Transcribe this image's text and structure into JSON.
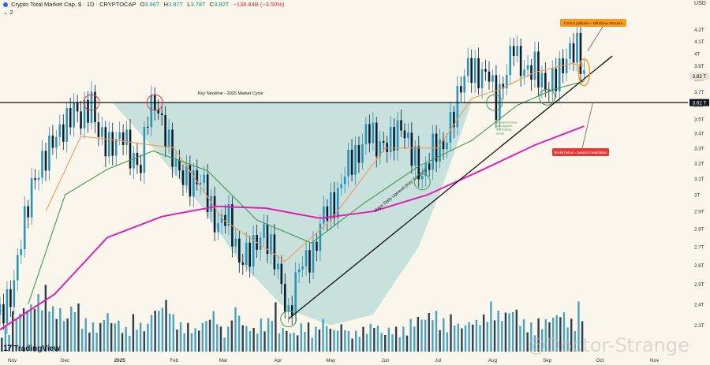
{
  "header": {
    "title": "Crypto Total Market Cap, $ · 1D · CRYPTOCAP",
    "open_label": "O",
    "open": "3.96T",
    "high_label": "H",
    "high": "3.97T",
    "low_label": "L",
    "low": "3.78T",
    "close_label": "C",
    "close": "3.82T",
    "change": "−138.84B (−3.50%)",
    "indicator_count": "2",
    "currency": "USD"
  },
  "branding": {
    "logo_text": "TradingView",
    "logo_mark": "17",
    "watermark": "@Doctor-Strange"
  },
  "colors": {
    "background": "#faf6ec",
    "bull_candle": "#2a93b8",
    "bear_candle": "#0b1d31",
    "ema_short": "#f39a5e",
    "ema_mid": "#3f9a4f",
    "ema_long": "#e020b0",
    "cup_fill": "#9ecfcf",
    "annotation_orange": "#f59a22",
    "annotation_red": "#e53935",
    "annotation_green": "#3f9a4f"
  },
  "chart_data": {
    "type": "candlestick",
    "title": "Crypto Total Market Cap",
    "ylabel": "",
    "xlabel": "",
    "y_scale": "log",
    "ylim": [
      2.18,
      4.32
    ],
    "y_ticks": [
      "4.2T",
      "4.1T",
      "4T",
      "3.9T",
      "3.8T",
      "3.7T",
      "3.6T",
      "3.5T",
      "3.4T",
      "3.3T",
      "3.2T",
      "3.1T",
      "3T",
      "2.9T",
      "2.8T",
      "2.7T",
      "2.6T",
      "2.5T",
      "2.4T",
      "2.3T"
    ],
    "y_tick_values": [
      4.2,
      4.1,
      4.0,
      3.9,
      3.8,
      3.7,
      3.6,
      3.5,
      3.4,
      3.3,
      3.2,
      3.1,
      3.0,
      2.9,
      2.8,
      2.7,
      2.6,
      2.5,
      2.4,
      2.3
    ],
    "x_ticks": [
      "Nov",
      "Dec",
      "2025",
      "Feb",
      "Mar",
      "Apr",
      "May",
      "Jun",
      "Jul",
      "Aug",
      "Sep",
      "Oct",
      "Nov"
    ],
    "x_range": [
      "2024-10-25",
      "2025-11-20"
    ],
    "x_tick_dates": [
      "2024-11-01",
      "2024-12-01",
      "2025-01-01",
      "2025-02-01",
      "2025-03-01",
      "2025-04-01",
      "2025-05-01",
      "2025-06-01",
      "2025-07-01",
      "2025-08-01",
      "2025-09-01",
      "2025-10-01",
      "2025-11-01"
    ],
    "price_labels": [
      {
        "text": "3.82 T",
        "value": 3.82,
        "style": "current"
      },
      {
        "text": "3.62 T",
        "value": 3.62,
        "style": "neckline"
      }
    ],
    "series": [
      {
        "name": "Total market cap",
        "kind": "candles",
        "points": [
          [
            "2024-10-25",
            2.35
          ],
          [
            "2024-11-01",
            2.45
          ],
          [
            "2024-11-06",
            2.75
          ],
          [
            "2024-11-12",
            3.05
          ],
          [
            "2024-11-18",
            3.2
          ],
          [
            "2024-11-24",
            3.35
          ],
          [
            "2024-12-01",
            3.45
          ],
          [
            "2024-12-06",
            3.58
          ],
          [
            "2024-12-10",
            3.5
          ],
          [
            "2024-12-16",
            3.62
          ],
          [
            "2024-12-20",
            3.4
          ],
          [
            "2024-12-27",
            3.3
          ],
          [
            "2025-01-03",
            3.4
          ],
          [
            "2025-01-08",
            3.22
          ],
          [
            "2025-01-13",
            3.18
          ],
          [
            "2025-01-17",
            3.55
          ],
          [
            "2025-01-21",
            3.62
          ],
          [
            "2025-01-27",
            3.4
          ],
          [
            "2025-02-03",
            3.15
          ],
          [
            "2025-02-10",
            3.08
          ],
          [
            "2025-02-17",
            3.1
          ],
          [
            "2025-02-25",
            2.8
          ],
          [
            "2025-03-03",
            2.9
          ],
          [
            "2025-03-10",
            2.62
          ],
          [
            "2025-03-17",
            2.68
          ],
          [
            "2025-03-24",
            2.78
          ],
          [
            "2025-03-31",
            2.62
          ],
          [
            "2025-04-07",
            2.33
          ],
          [
            "2025-04-13",
            2.6
          ],
          [
            "2025-04-21",
            2.65
          ],
          [
            "2025-04-27",
            2.9
          ],
          [
            "2025-05-04",
            2.95
          ],
          [
            "2025-05-10",
            3.2
          ],
          [
            "2025-05-17",
            3.25
          ],
          [
            "2025-05-22",
            3.45
          ],
          [
            "2025-05-28",
            3.3
          ],
          [
            "2025-06-04",
            3.35
          ],
          [
            "2025-06-10",
            3.45
          ],
          [
            "2025-06-17",
            3.25
          ],
          [
            "2025-06-22",
            3.1
          ],
          [
            "2025-06-28",
            3.3
          ],
          [
            "2025-07-04",
            3.3
          ],
          [
            "2025-07-10",
            3.55
          ],
          [
            "2025-07-14",
            3.75
          ],
          [
            "2025-07-18",
            3.9
          ],
          [
            "2025-07-24",
            3.82
          ],
          [
            "2025-07-30",
            3.85
          ],
          [
            "2025-08-03",
            3.6
          ],
          [
            "2025-08-08",
            3.8
          ],
          [
            "2025-08-13",
            4.1
          ],
          [
            "2025-08-15",
            3.95
          ],
          [
            "2025-08-19",
            3.85
          ],
          [
            "2025-08-25",
            3.9
          ],
          [
            "2025-08-31",
            3.72
          ],
          [
            "2025-09-05",
            3.8
          ],
          [
            "2025-09-10",
            3.9
          ],
          [
            "2025-09-14",
            4.02
          ],
          [
            "2025-09-18",
            4.05
          ],
          [
            "2025-09-22",
            3.82
          ]
        ]
      },
      {
        "name": "EMA short",
        "kind": "line",
        "color_key": "ema_short",
        "points": [
          [
            "2024-11-20",
            2.9
          ],
          [
            "2024-12-10",
            3.38
          ],
          [
            "2025-01-01",
            3.35
          ],
          [
            "2025-02-01",
            3.3
          ],
          [
            "2025-03-01",
            2.85
          ],
          [
            "2025-04-05",
            2.62
          ],
          [
            "2025-05-01",
            2.85
          ],
          [
            "2025-06-01",
            3.3
          ],
          [
            "2025-07-01",
            3.3
          ],
          [
            "2025-07-20",
            3.65
          ],
          [
            "2025-08-05",
            3.72
          ],
          [
            "2025-08-25",
            3.85
          ],
          [
            "2025-09-15",
            3.92
          ],
          [
            "2025-09-22",
            3.9
          ]
        ]
      },
      {
        "name": "EMA mid",
        "kind": "line",
        "color_key": "ema_mid",
        "points": [
          [
            "2024-11-10",
            2.4
          ],
          [
            "2024-12-01",
            3.0
          ],
          [
            "2024-12-25",
            3.16
          ],
          [
            "2025-01-20",
            3.28
          ],
          [
            "2025-02-20",
            3.15
          ],
          [
            "2025-03-20",
            2.85
          ],
          [
            "2025-04-20",
            2.72
          ],
          [
            "2025-05-20",
            2.95
          ],
          [
            "2025-06-20",
            3.18
          ],
          [
            "2025-07-20",
            3.35
          ],
          [
            "2025-08-15",
            3.6
          ],
          [
            "2025-09-05",
            3.72
          ],
          [
            "2025-09-22",
            3.78
          ]
        ]
      },
      {
        "name": "EMA long",
        "kind": "line",
        "color_key": "ema_long",
        "points": [
          [
            "2024-10-25",
            2.28
          ],
          [
            "2024-11-25",
            2.45
          ],
          [
            "2024-12-25",
            2.75
          ],
          [
            "2025-01-25",
            2.87
          ],
          [
            "2025-02-25",
            2.93
          ],
          [
            "2025-03-25",
            2.92
          ],
          [
            "2025-04-25",
            2.86
          ],
          [
            "2025-05-25",
            2.9
          ],
          [
            "2025-06-25",
            3.0
          ],
          [
            "2025-07-25",
            3.15
          ],
          [
            "2025-08-25",
            3.32
          ],
          [
            "2025-09-22",
            3.45
          ]
        ]
      }
    ],
    "volume": {
      "relative_heights": [
        0.3,
        0.5,
        0.6,
        0.7,
        0.8,
        0.55,
        0.45,
        0.6,
        0.4,
        0.35,
        0.5,
        0.4,
        0.3,
        0.45,
        0.35,
        0.55,
        0.65,
        0.45,
        0.35,
        0.3,
        0.4,
        0.5,
        0.3,
        0.55,
        0.35,
        0.3,
        0.4,
        0.6,
        0.3,
        0.25,
        0.35,
        0.3,
        0.4,
        0.3,
        0.35,
        0.25,
        0.3,
        0.35,
        0.25,
        0.3,
        0.3,
        0.4,
        0.45,
        0.5,
        0.4,
        0.45,
        0.35,
        0.4,
        0.45,
        0.6,
        0.5,
        0.55,
        0.4,
        0.35,
        0.4,
        0.45,
        0.5,
        0.4,
        0.6
      ]
    },
    "annotations": [
      {
        "id": "neckline",
        "text": "Key Neckline - 2025 Market Cycle",
        "type": "horizontal-line",
        "value": 3.62
      },
      {
        "id": "trendline",
        "text": "Major Daily Uptrend (Key Support)",
        "type": "trendline",
        "from": [
          "2025-04-07",
          2.33
        ],
        "to": [
          "2025-10-08",
          3.98
        ]
      },
      {
        "id": "pullback-note",
        "text": "Correct pullback + still above structure",
        "type": "callout",
        "color_key": "annotation_orange"
      },
      {
        "id": "break-note",
        "text": "Break below = bearish invalidation",
        "type": "callout",
        "color_key": "annotation_red"
      },
      {
        "id": "reclaim-note",
        "text": "Reclaimed level into support. Still holding above",
        "type": "note",
        "color_key": "annotation_green"
      }
    ],
    "markers": [
      {
        "shape": "circle",
        "color_key": "annotation_red",
        "at": [
          "2024-12-16",
          3.62
        ]
      },
      {
        "shape": "circle",
        "color_key": "annotation_red",
        "at": [
          "2025-01-21",
          3.62
        ]
      },
      {
        "shape": "circle",
        "color_key": "annotation_green",
        "at": [
          "2025-04-07",
          2.33
        ]
      },
      {
        "shape": "circle",
        "color_key": "annotation_green",
        "at": [
          "2025-06-22",
          3.08
        ]
      },
      {
        "shape": "circle",
        "color_key": "annotation_green",
        "at": [
          "2025-08-02",
          3.62
        ]
      },
      {
        "shape": "circle",
        "color_key": "annotation_green",
        "at": [
          "2025-09-01",
          3.66
        ]
      },
      {
        "shape": "ellipse",
        "color_key": "annotation_orange",
        "at": [
          "2025-09-22",
          3.85
        ]
      }
    ],
    "grid": false,
    "legend": "none"
  }
}
